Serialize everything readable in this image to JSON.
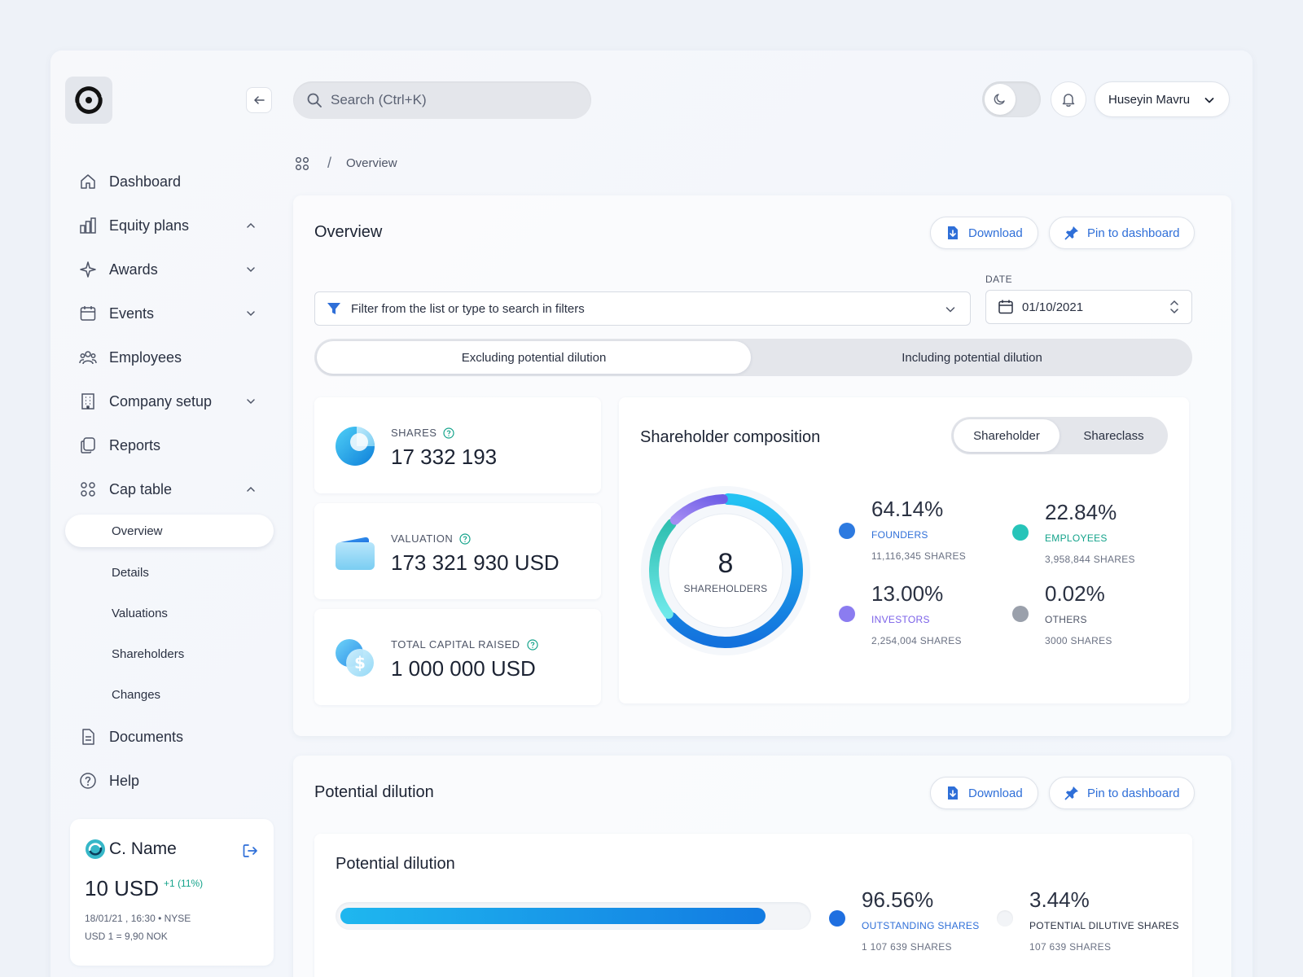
{
  "brand": {
    "accent": "#2f6fd8",
    "founders_color": "#2d7ae0",
    "employees_color": "#27c4b9",
    "investors_color": "#8b7cf0",
    "others_color": "#9aa0ab"
  },
  "search": {
    "placeholder": "Search (Ctrl+K)"
  },
  "user": {
    "name": "Huseyin Mavru"
  },
  "sidebar": {
    "items": [
      {
        "label": "Dashboard",
        "icon": "home-icon"
      },
      {
        "label": "Equity plans",
        "icon": "bar-chart-icon"
      },
      {
        "label": "Awards",
        "icon": "sparkle-icon"
      },
      {
        "label": "Events",
        "icon": "calendar-icon"
      },
      {
        "label": "Employees",
        "icon": "people-icon"
      },
      {
        "label": "Company setup",
        "icon": "building-icon"
      },
      {
        "label": "Reports",
        "icon": "copy-icon"
      },
      {
        "label": "Cap table",
        "icon": "grid-icon"
      }
    ],
    "cap_table_sub": [
      "Overview",
      "Details",
      "Valuations",
      "Shareholders",
      "Changes"
    ],
    "bottom_items": [
      {
        "label": "Documents",
        "icon": "document-icon"
      },
      {
        "label": "Help",
        "icon": "help-icon"
      }
    ]
  },
  "company": {
    "name": "C. Name",
    "price": "10 USD",
    "change": "+1 (11%)",
    "timestamp": "18/01/21 , 16:30 • NYSE",
    "fx": "USD 1 = 9,90 NOK"
  },
  "breadcrumb": {
    "current": "Overview"
  },
  "overview": {
    "title": "Overview",
    "download_label": "Download",
    "pin_label": "Pin to dashboard",
    "filter_placeholder": "Filter from the list or type to search in filters",
    "date_label": "DATE",
    "date_value": "01/10/2021",
    "seg_excluding": "Excluding potential dilution",
    "seg_including": "Including potential dilution",
    "stats": [
      {
        "label": "SHARES",
        "value": "17 332 193"
      },
      {
        "label": "VALUATION",
        "value": "173 321 930 USD"
      },
      {
        "label": "TOTAL CAPITAL RAISED",
        "value": "1 000 000 USD"
      }
    ]
  },
  "composition": {
    "title": "Shareholder composition",
    "tab_shareholder": "Shareholder",
    "tab_shareclass": "Shareclass",
    "total": "8",
    "total_label": "SHAREHOLDERS",
    "legend": [
      {
        "pct": "64.14%",
        "name": "FOUNDERS",
        "shares": "11,116,345 SHARES",
        "value": 64.14
      },
      {
        "pct": "22.84%",
        "name": "EMPLOYEES",
        "shares": "3,958,844 SHARES",
        "value": 22.84
      },
      {
        "pct": "13.00%",
        "name": "INVESTORS",
        "shares": "2,254,004 SHARES",
        "value": 13.0
      },
      {
        "pct": "0.02%",
        "name": "OTHERS",
        "shares": "3000 SHARES",
        "value": 0.02
      }
    ]
  },
  "dilution": {
    "panel_title": "Potential dilution",
    "download_label": "Download",
    "pin_label": "Pin to dashboard",
    "inner_title": "Potential dilution",
    "outstanding_fraction": 0.9656,
    "outstanding": {
      "pct": "96.56%",
      "name": "OUTSTANDING SHARES",
      "shares": "1 107 639 SHARES"
    },
    "potential": {
      "pct": "3.44%",
      "name": "POTENTIAL DILUTIVE SHARES",
      "shares": "107 639 SHARES"
    }
  }
}
